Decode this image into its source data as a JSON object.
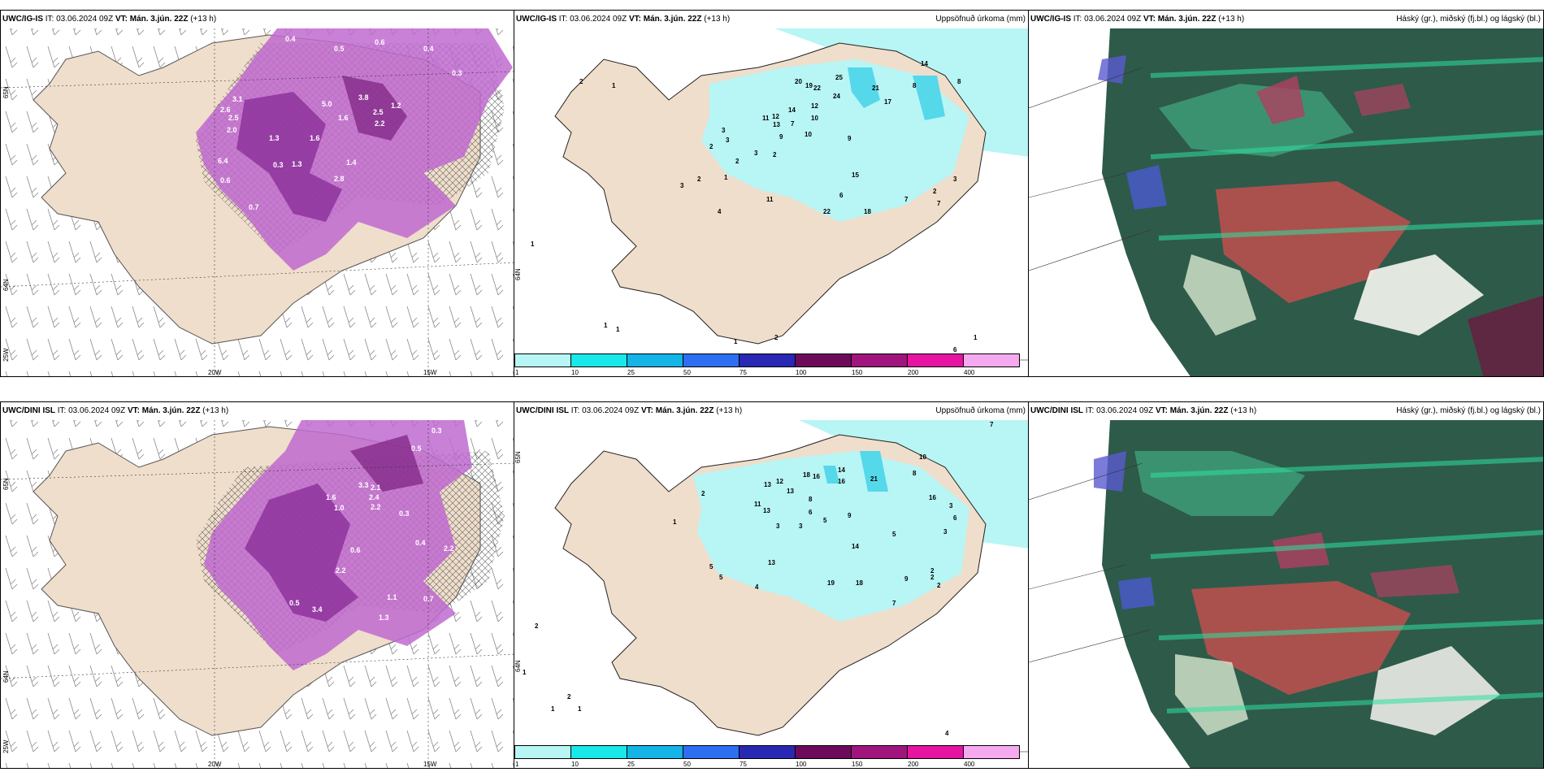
{
  "rows": [
    {
      "model": "UWC/IG-IS",
      "it_label": "IT:",
      "it_value": "03.06.2024 09Z",
      "vt_label": "VT:",
      "vt_value": "Mán. 3.jún. 22Z",
      "lead": "(+13 h)",
      "precip_numbers": [
        "20",
        "19",
        "22",
        "25",
        "24",
        "21",
        "17",
        "14",
        "12",
        "14",
        "11",
        "12",
        "13",
        "10",
        "8",
        "10",
        "9",
        "9",
        "7",
        "3",
        "2",
        "3",
        "3",
        "2",
        "1",
        "2",
        "2",
        "3",
        "2",
        "11",
        "8",
        "6",
        "4",
        "22",
        "15",
        "18",
        "7",
        "7",
        "2",
        "3",
        "1",
        "1",
        "1",
        "1",
        "1",
        "2",
        "6",
        "1"
      ],
      "cloud_numbers": [
        "0.4",
        "0.6",
        "0.5",
        "0.3",
        "0.4",
        "3.1",
        "2.6",
        "2.5",
        "2.0",
        "1.3",
        "5.0",
        "3.8",
        "2.5",
        "2.2",
        "1.6",
        "1.4",
        "2.8",
        "1.3",
        "1.2",
        "0.6",
        "6.4",
        "0.3",
        "1.6",
        "0.7"
      ]
    },
    {
      "model": "UWC/DINI ISL",
      "it_label": "IT:",
      "it_value": "03.06.2024 09Z",
      "vt_label": "VT:",
      "vt_value": "Mán. 3.jún. 22Z",
      "lead": "(+13 h)",
      "precip_numbers": [
        "18",
        "16",
        "14",
        "16",
        "21",
        "10",
        "13",
        "12",
        "13",
        "11",
        "13",
        "8",
        "5",
        "6",
        "3",
        "3",
        "9",
        "8",
        "5",
        "16",
        "3",
        "6",
        "14",
        "3",
        "2",
        "2",
        "2",
        "9",
        "7",
        "19",
        "18",
        "13",
        "4",
        "5",
        "5",
        "1",
        "2",
        "2",
        "1",
        "1",
        "1",
        "2",
        "4",
        "7"
      ],
      "cloud_numbers": [
        "0.3",
        "0.5",
        "3.3",
        "2.1",
        "2.4",
        "2.2",
        "1.6",
        "1.0",
        "0.6",
        "0.3",
        "2.2",
        "3.4",
        "1.3",
        "1.1",
        "0.5",
        "0.7",
        "0.4",
        "2.2"
      ]
    }
  ],
  "precip_title": "Uppsöfnuð úrkoma (mm)",
  "cloud_title": "Háský (gr.), miðský (fj.bl.) og lágský (bl.)",
  "colorbar": {
    "labels": [
      "1",
      "10",
      "25",
      "50",
      "75",
      "100",
      "150",
      "200",
      "400"
    ],
    "colors": [
      "#b8f5f5",
      "#19e8e8",
      "#14b4e6",
      "#2e6ef0",
      "#2828b4",
      "#6e0a5a",
      "#a0157d",
      "#e614a0",
      "#f5aaf0"
    ]
  },
  "axes": {
    "lon_left": "20W",
    "lon_right": "15W",
    "lat_top": "65N",
    "lat_bottom": "64N",
    "lon_corner": "25W",
    "lat_mid": "64N"
  }
}
